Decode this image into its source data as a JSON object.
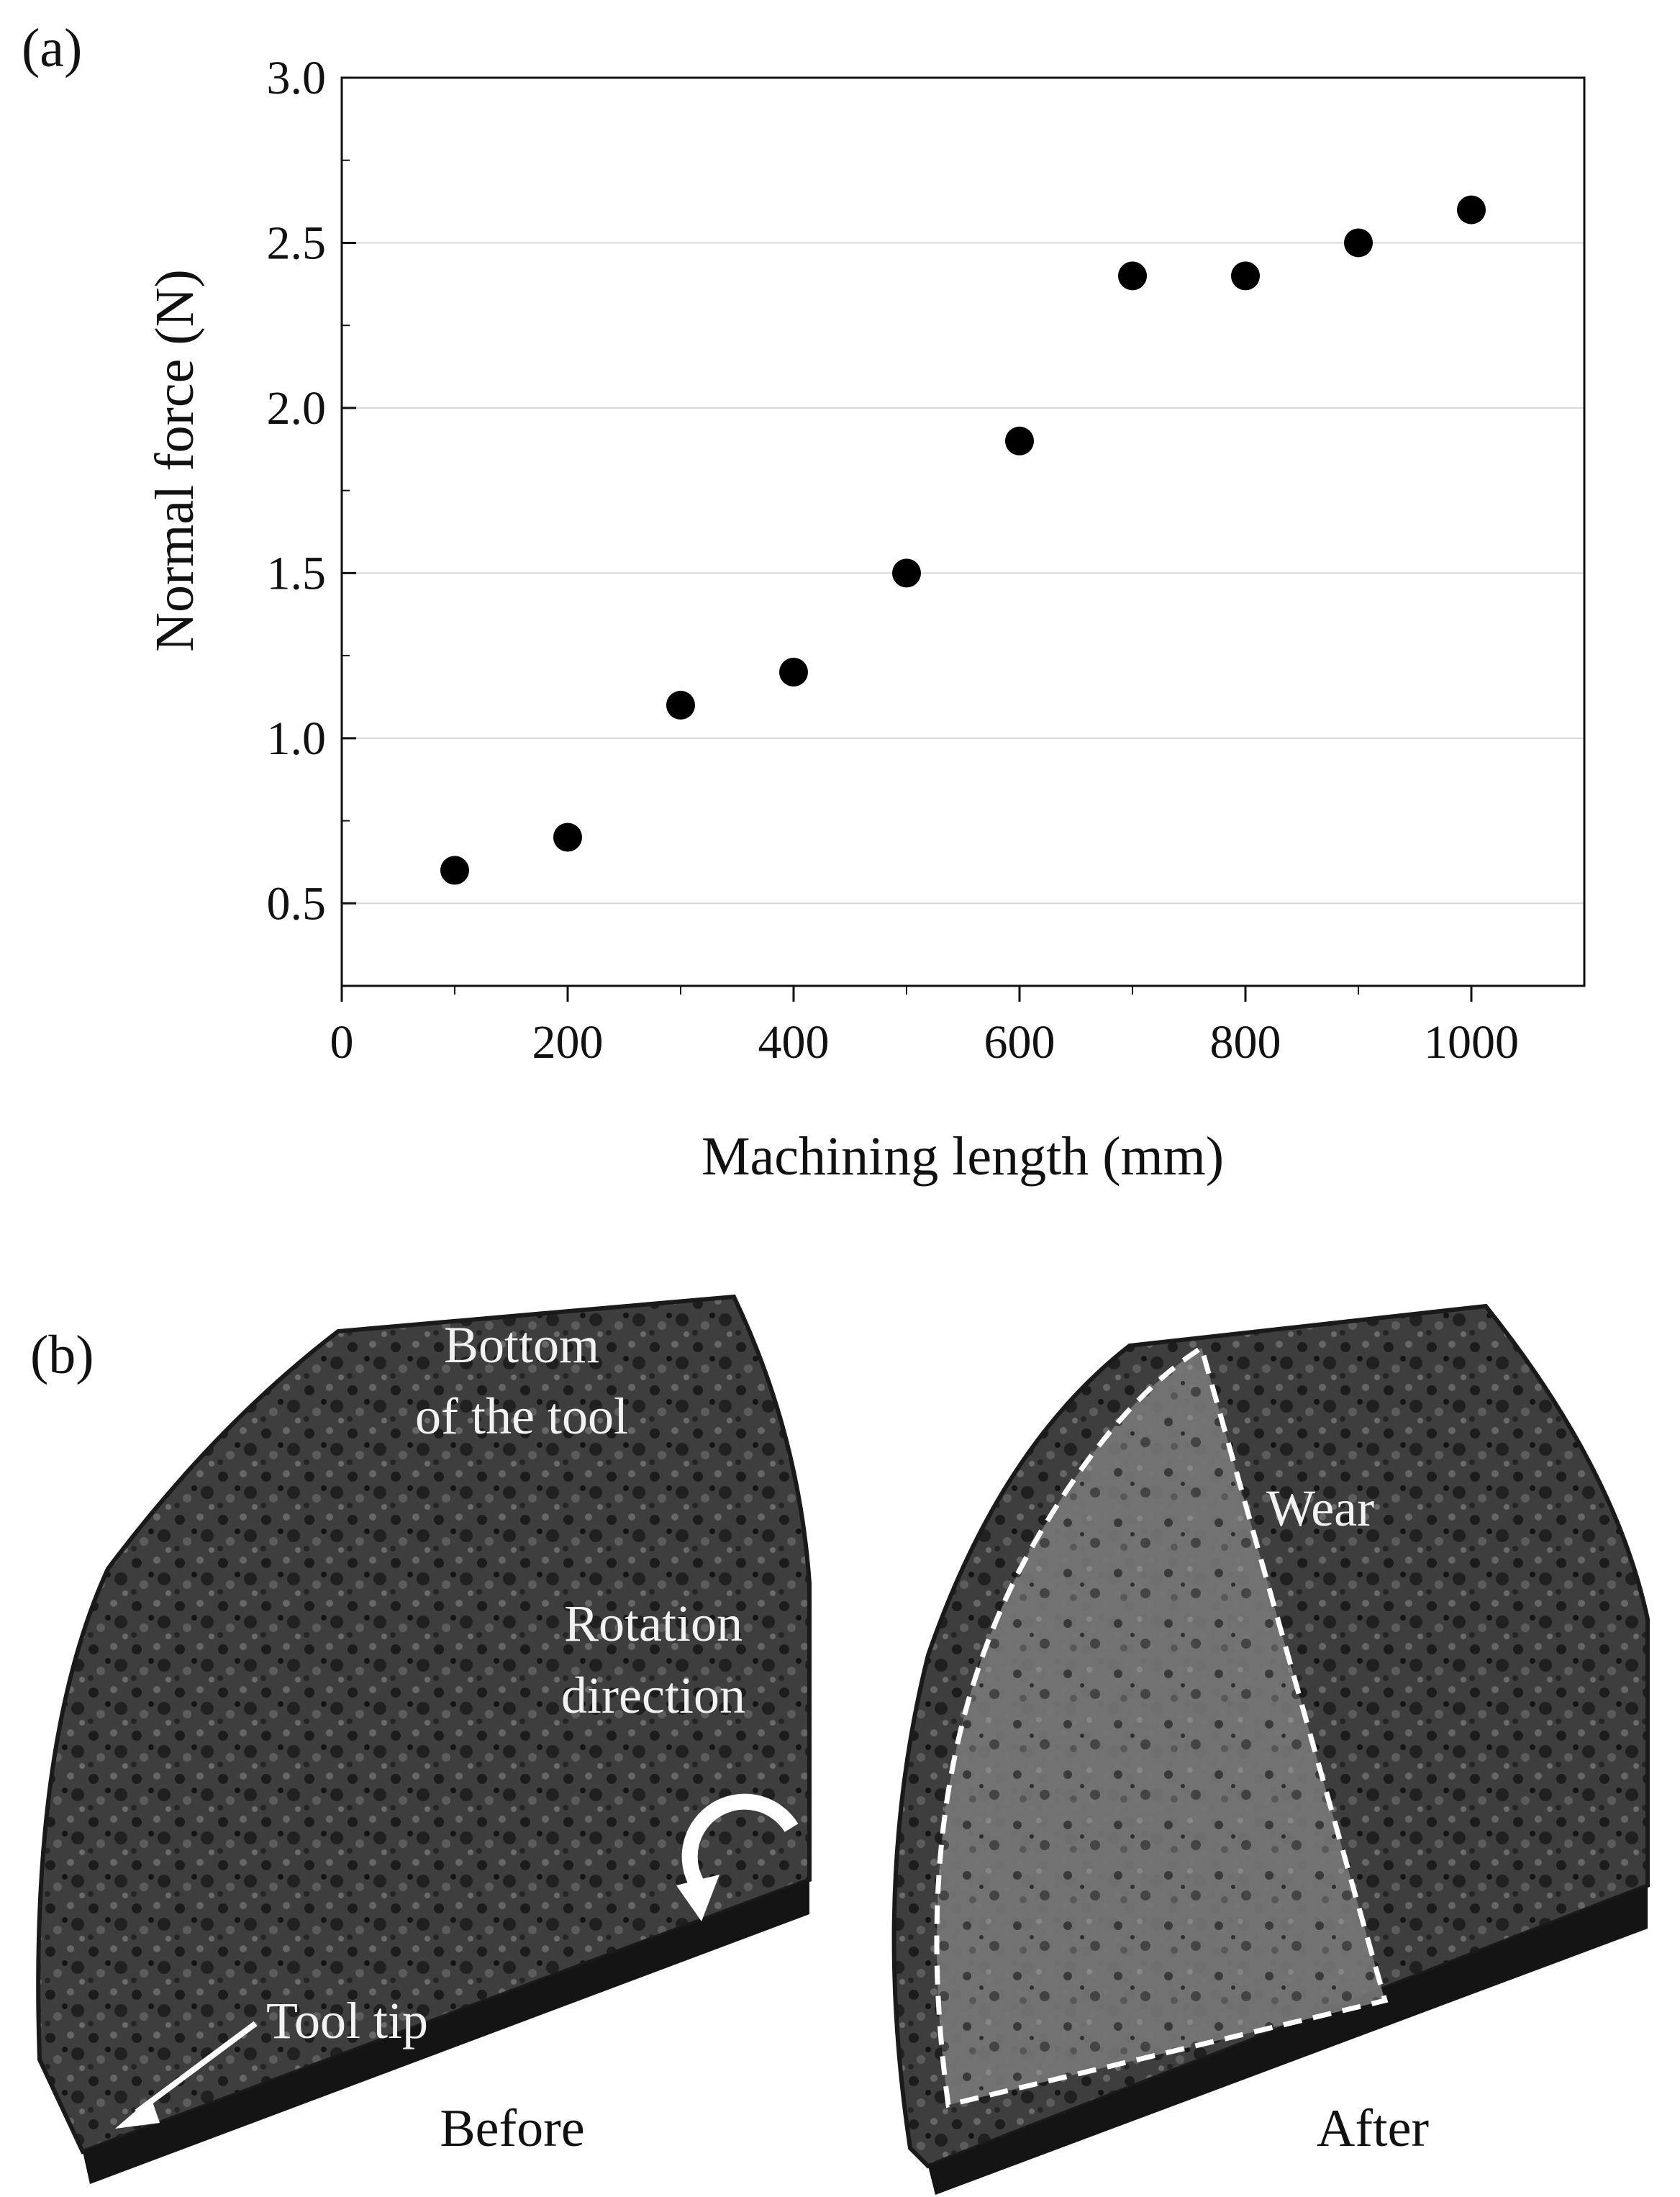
{
  "panel_a": {
    "label": "(a)"
  },
  "panel_b": {
    "label": "(b)",
    "before_annotations": {
      "bottom_line1": "Bottom",
      "bottom_line2": "of the tool",
      "rotation_line1": "Rotation",
      "rotation_line2": "direction",
      "tool_tip": "Tool tip",
      "caption": "Before"
    },
    "after_annotations": {
      "wear": "Wear",
      "caption": "After"
    },
    "colors": {
      "surface_dark": "#222222",
      "surface_mid": "#4a4a4a",
      "wear_area": "#6e6e6e",
      "annotation": "#ffffff"
    }
  },
  "chart_data": {
    "type": "scatter",
    "title": "",
    "xlabel": "Machining length (mm)",
    "ylabel": "Normal force (N)",
    "xlim": [
      0,
      1100
    ],
    "ylim": [
      0.25,
      3.0
    ],
    "x_ticks": [
      0,
      200,
      400,
      600,
      800,
      1000
    ],
    "x_tick_labels": [
      "0",
      "200",
      "400",
      "600",
      "800",
      "1000"
    ],
    "y_ticks": [
      0.5,
      1.0,
      1.5,
      2.0,
      2.5,
      3.0
    ],
    "y_tick_labels": [
      "0.5",
      "1.0",
      "1.5",
      "2.0",
      "2.5",
      "3.0"
    ],
    "grid": "horizontal",
    "series": [
      {
        "name": "Normal force",
        "x": [
          100,
          200,
          300,
          400,
          500,
          600,
          700,
          800,
          900,
          1000
        ],
        "y": [
          0.6,
          0.7,
          1.1,
          1.2,
          1.5,
          1.9,
          2.4,
          2.4,
          2.5,
          2.6
        ],
        "marker": "circle",
        "color": "#000000"
      }
    ]
  }
}
